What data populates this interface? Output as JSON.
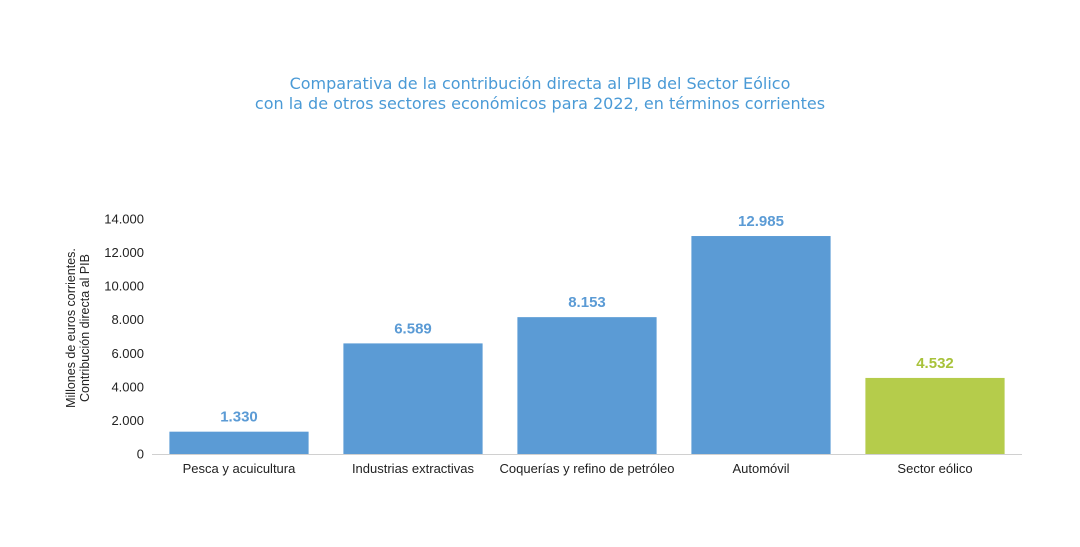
{
  "colors": {
    "title": "#4a9ad6",
    "bar_default": "#5b9bd5",
    "bar_highlight": "#b5cc4b",
    "label_default": "#5b9bd5",
    "label_highlight": "#a8c23a",
    "axis": "#d0d0d0",
    "text": "#222222"
  },
  "chart_data": {
    "type": "bar",
    "title": [
      "Comparativa de la contribución directa al PIB del Sector Eólico",
      "con la de otros sectores económicos para 2022, en términos corrientes"
    ],
    "ylabel": [
      "Millones de euros corrientes.",
      "Contribución  directa al PIB"
    ],
    "xlabel": "",
    "categories": [
      "Pesca y acuicultura",
      "Industrias extractivas",
      "Coquerías y refino de petróleo",
      "Automóvil",
      "Sector eólico"
    ],
    "values": [
      1330,
      6589,
      8153,
      12985,
      4532
    ],
    "value_labels": [
      "1.330",
      "6.589",
      "8.153",
      "12.985",
      "4.532"
    ],
    "highlight_index": 4,
    "ylim": [
      0,
      14000
    ],
    "yticks": [
      0,
      2000,
      4000,
      6000,
      8000,
      10000,
      12000,
      14000
    ],
    "ytick_labels": [
      "0",
      "2.000",
      "4.000",
      "6.000",
      "8.000",
      "10.000",
      "12.000",
      "14.000"
    ],
    "grid": false,
    "legend": "none"
  }
}
